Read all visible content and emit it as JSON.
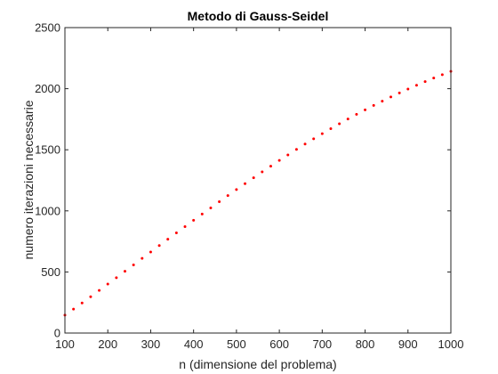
{
  "chart_data": {
    "type": "scatter",
    "title": "Metodo di Gauss-Seidel",
    "xlabel": "n (dimensione del problema)",
    "ylabel": "numero iterazioni necessarie",
    "xlim": [
      100,
      1000
    ],
    "ylim": [
      0,
      2500
    ],
    "xticks": [
      100,
      200,
      300,
      400,
      500,
      600,
      700,
      800,
      900,
      1000
    ],
    "yticks": [
      0,
      500,
      1000,
      1500,
      2000,
      2500
    ],
    "grid": false,
    "box": true,
    "marker": "point",
    "colors": {
      "series": "#ff0000",
      "axes": "#262626",
      "background": "#ffffff"
    },
    "series": [
      {
        "x": [
          100,
          120,
          140,
          160,
          180,
          200,
          220,
          240,
          260,
          280,
          300,
          320,
          340,
          360,
          380,
          400,
          420,
          440,
          460,
          480,
          500,
          520,
          540,
          560,
          580,
          600,
          620,
          640,
          660,
          680,
          700,
          720,
          740,
          760,
          780,
          800,
          820,
          840,
          860,
          880,
          900,
          920,
          940,
          960,
          980,
          1000
        ],
        "y": [
          147,
          196,
          246,
          297,
          349,
          401,
          453,
          506,
          558,
          611,
          663,
          716,
          768,
          820,
          871,
          923,
          974,
          1024,
          1075,
          1125,
          1174,
          1223,
          1271,
          1319,
          1366,
          1413,
          1458,
          1503,
          1547,
          1590,
          1632,
          1673,
          1713,
          1752,
          1790,
          1827,
          1863,
          1898,
          1932,
          1965,
          1997,
          2028,
          2058,
          2087,
          2115,
          2142
        ]
      }
    ]
  }
}
